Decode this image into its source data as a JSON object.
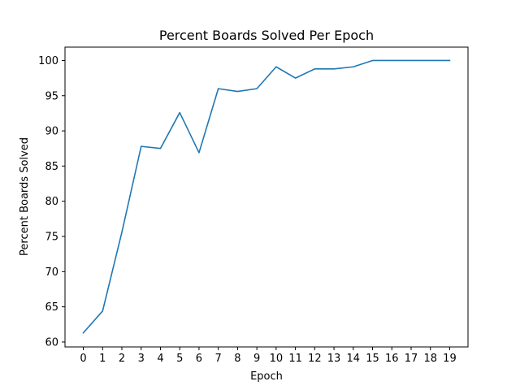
{
  "chart_data": {
    "type": "line",
    "title": "Percent Boards Solved Per Epoch",
    "xlabel": "Epoch",
    "ylabel": "Percent Boards Solved",
    "x": [
      0,
      1,
      2,
      3,
      4,
      5,
      6,
      7,
      8,
      9,
      10,
      11,
      12,
      13,
      14,
      15,
      16,
      17,
      18,
      19
    ],
    "x_ticks": [
      "0",
      "1",
      "2",
      "3",
      "4",
      "5",
      "6",
      "7",
      "8",
      "9",
      "10",
      "11",
      "12",
      "13",
      "14",
      "15",
      "16",
      "17",
      "18",
      "19"
    ],
    "y_ticks": [
      60,
      65,
      70,
      75,
      80,
      85,
      90,
      95,
      100
    ],
    "xlim": [
      -0.95,
      19.95
    ],
    "ylim": [
      59.3,
      101.9
    ],
    "grid": false,
    "series": [
      {
        "color": "#1f77b4",
        "values": [
          61.3,
          64.4,
          75.6,
          87.8,
          87.5,
          92.6,
          86.9,
          96.0,
          95.6,
          96.0,
          99.1,
          97.5,
          98.8,
          98.8,
          99.1,
          100.0,
          100.0,
          100.0,
          100.0,
          100.0
        ]
      }
    ]
  }
}
